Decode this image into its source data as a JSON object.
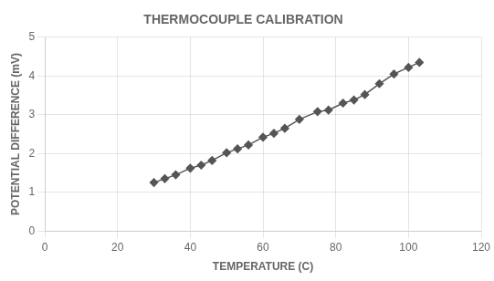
{
  "chart_data": {
    "type": "line",
    "title": "THERMOCOUPLE CALIBRATION",
    "xlabel": "TEMPERATURE (C)",
    "ylabel": "POTENTIAL DIFFERENCE (mV)",
    "x": [
      30,
      33,
      36,
      40,
      43,
      46,
      50,
      53,
      56,
      60,
      63,
      66,
      70,
      75,
      78,
      82,
      85,
      88,
      92,
      96,
      100,
      103
    ],
    "values": [
      1.25,
      1.35,
      1.45,
      1.62,
      1.7,
      1.82,
      2.02,
      2.12,
      2.22,
      2.42,
      2.52,
      2.65,
      2.88,
      3.08,
      3.12,
      3.3,
      3.38,
      3.52,
      3.8,
      4.05,
      4.22,
      4.35
    ],
    "color": "#555555",
    "marker": "diamond",
    "xlim": [
      0,
      120
    ],
    "xticks": [
      0,
      20,
      40,
      60,
      80,
      100,
      120
    ],
    "ylim": [
      0,
      5
    ],
    "yticks": [
      0,
      1,
      2,
      3,
      4,
      5
    ],
    "grid": true
  }
}
